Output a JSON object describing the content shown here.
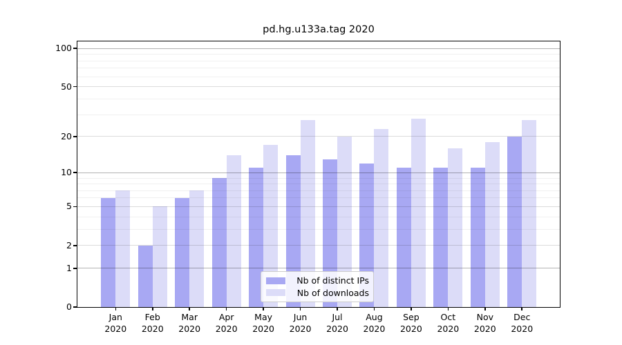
{
  "chart_data": {
    "type": "bar",
    "title": "pd.hg.u133a.tag 2020",
    "categories": [
      "Jan",
      "Feb",
      "Mar",
      "Apr",
      "May",
      "Jun",
      "Jul",
      "Aug",
      "Sep",
      "Oct",
      "Nov",
      "Dec"
    ],
    "year": "2020",
    "series": [
      {
        "name": "Nb of distinct IPs",
        "color": "#a8a8f3",
        "values": [
          6,
          2,
          6,
          9,
          11,
          14,
          13,
          12,
          11,
          11,
          11,
          20
        ]
      },
      {
        "name": "Nb of downloads",
        "color": "#dcdcf8",
        "values": [
          7,
          5,
          7,
          14,
          17,
          27,
          20,
          23,
          28,
          16,
          18,
          27
        ]
      }
    ],
    "ylabel": "",
    "xlabel": "",
    "yscale": "log1p",
    "yticks": [
      0,
      1,
      2,
      5,
      10,
      20,
      50,
      100
    ],
    "grid_major": [
      1,
      10,
      100
    ],
    "grid_mid": [
      2,
      5,
      20,
      50
    ],
    "grid_minor": [
      3,
      4,
      6,
      7,
      8,
      9,
      30,
      40,
      60,
      70,
      80,
      90
    ],
    "ylim": [
      0,
      115
    ],
    "grid": "on",
    "legend_position": "bottom-center",
    "axis_color": "#000000",
    "background_color": "#ffffff"
  }
}
